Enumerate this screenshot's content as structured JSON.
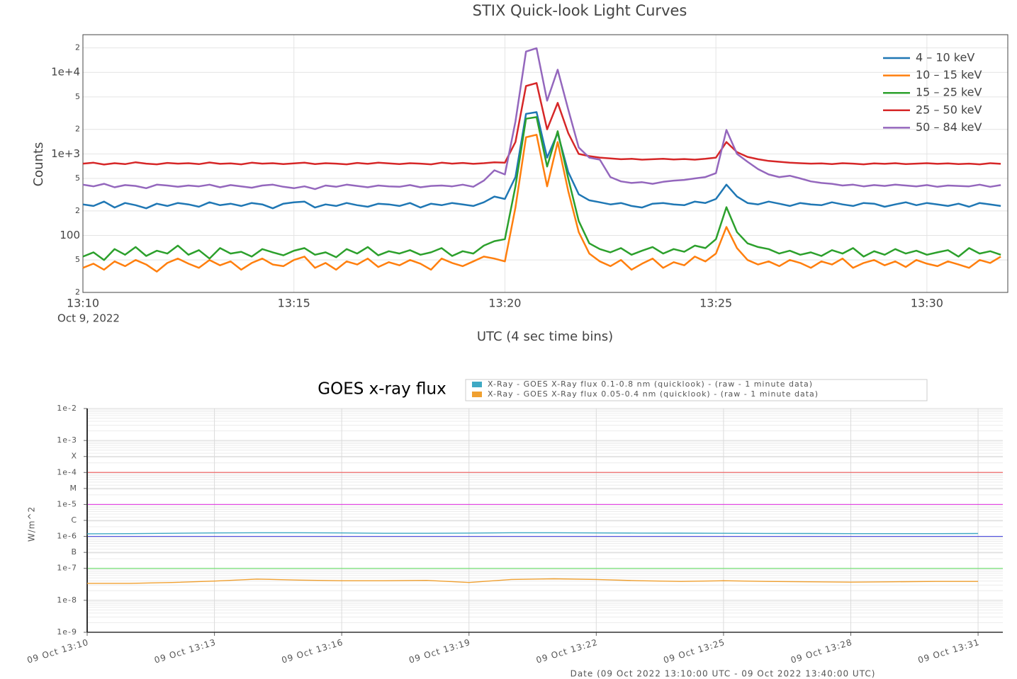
{
  "chart_data": [
    {
      "type": "line",
      "title": "STIX Quick-look Light Curves",
      "ylabel": "Counts",
      "xlabel": "UTC (4 sec time bins)",
      "x_sublabel": "Oct 9, 2022",
      "log_y": true,
      "grid": true,
      "legend": "upper right",
      "xlim": [
        "13:10:00",
        "13:31:55"
      ],
      "xticks": [
        "13:10",
        "13:15",
        "13:20",
        "13:25",
        "13:30"
      ],
      "ylim": [
        20,
        29000
      ],
      "yticks": [
        {
          "value": 20,
          "label": "2"
        },
        {
          "value": 50,
          "label": "5"
        },
        100,
        {
          "value": 200,
          "label": "2"
        },
        {
          "value": 500,
          "label": "5"
        },
        {
          "value": 1000,
          "label": "1e+3"
        },
        {
          "value": 2000,
          "label": "2"
        },
        {
          "value": 5000,
          "label": "5"
        },
        {
          "value": 10000,
          "label": "1e+4"
        },
        {
          "value": 20000,
          "label": "2"
        }
      ],
      "x": [
        "13:10:00",
        "13:10:15",
        "13:10:30",
        "13:10:45",
        "13:11:00",
        "13:11:15",
        "13:11:30",
        "13:11:45",
        "13:12:00",
        "13:12:15",
        "13:12:30",
        "13:12:45",
        "13:13:00",
        "13:13:15",
        "13:13:30",
        "13:13:45",
        "13:14:00",
        "13:14:15",
        "13:14:30",
        "13:14:45",
        "13:15:00",
        "13:15:15",
        "13:15:30",
        "13:15:45",
        "13:16:00",
        "13:16:15",
        "13:16:30",
        "13:16:45",
        "13:17:00",
        "13:17:15",
        "13:17:30",
        "13:17:45",
        "13:18:00",
        "13:18:15",
        "13:18:30",
        "13:18:45",
        "13:19:00",
        "13:19:15",
        "13:19:30",
        "13:19:45",
        "13:20:00",
        "13:20:15",
        "13:20:30",
        "13:20:45",
        "13:21:00",
        "13:21:15",
        "13:21:30",
        "13:21:45",
        "13:22:00",
        "13:22:15",
        "13:22:30",
        "13:22:45",
        "13:23:00",
        "13:23:15",
        "13:23:30",
        "13:23:45",
        "13:24:00",
        "13:24:15",
        "13:24:30",
        "13:24:45",
        "13:25:00",
        "13:25:15",
        "13:25:30",
        "13:25:45",
        "13:26:00",
        "13:26:15",
        "13:26:30",
        "13:26:45",
        "13:27:00",
        "13:27:15",
        "13:27:30",
        "13:27:45",
        "13:28:00",
        "13:28:15",
        "13:28:30",
        "13:28:45",
        "13:29:00",
        "13:29:15",
        "13:29:30",
        "13:29:45",
        "13:30:00",
        "13:30:15",
        "13:30:30",
        "13:30:45",
        "13:31:00",
        "13:31:15",
        "13:31:30",
        "13:31:45"
      ],
      "series": [
        {
          "name": "4 – 10 keV",
          "color": "#1f77b4",
          "values": [
            240,
            230,
            260,
            220,
            250,
            235,
            215,
            245,
            230,
            250,
            240,
            225,
            255,
            235,
            245,
            230,
            250,
            240,
            215,
            245,
            255,
            260,
            220,
            240,
            230,
            250,
            235,
            225,
            245,
            240,
            230,
            250,
            220,
            245,
            235,
            250,
            240,
            230,
            255,
            300,
            280,
            520,
            3100,
            3250,
            900,
            1800,
            600,
            320,
            270,
            255,
            240,
            250,
            230,
            220,
            245,
            250,
            240,
            235,
            260,
            250,
            280,
            420,
            300,
            250,
            240,
            260,
            245,
            230,
            250,
            240,
            235,
            255,
            240,
            230,
            250,
            245,
            225,
            240,
            255,
            235,
            250,
            240,
            230,
            245,
            225,
            250,
            240,
            230
          ]
        },
        {
          "name": "10 – 15 keV",
          "color": "#ff7f0e",
          "values": [
            40,
            45,
            38,
            48,
            42,
            50,
            44,
            36,
            46,
            52,
            45,
            40,
            50,
            43,
            48,
            38,
            46,
            52,
            44,
            42,
            50,
            55,
            40,
            46,
            38,
            48,
            44,
            52,
            41,
            47,
            43,
            50,
            45,
            38,
            52,
            46,
            42,
            48,
            55,
            52,
            48,
            220,
            1600,
            1720,
            400,
            1400,
            350,
            110,
            60,
            48,
            42,
            50,
            38,
            45,
            52,
            40,
            47,
            43,
            55,
            48,
            60,
            127,
            70,
            50,
            44,
            48,
            42,
            50,
            46,
            40,
            48,
            44,
            52,
            40,
            46,
            50,
            43,
            48,
            41,
            50,
            45,
            42,
            48,
            44,
            40,
            50,
            46,
            55
          ]
        },
        {
          "name": "15 – 25 keV",
          "color": "#2ca02c",
          "values": [
            55,
            62,
            50,
            68,
            58,
            72,
            56,
            65,
            60,
            75,
            58,
            66,
            52,
            70,
            60,
            63,
            55,
            68,
            62,
            57,
            65,
            70,
            58,
            62,
            54,
            68,
            60,
            72,
            57,
            64,
            60,
            66,
            58,
            62,
            70,
            56,
            64,
            60,
            75,
            85,
            90,
            400,
            2700,
            2830,
            700,
            1900,
            500,
            150,
            80,
            68,
            62,
            70,
            58,
            65,
            72,
            60,
            68,
            63,
            75,
            70,
            90,
            222,
            110,
            80,
            72,
            68,
            60,
            65,
            58,
            62,
            56,
            66,
            60,
            70,
            55,
            64,
            58,
            68,
            60,
            65,
            58,
            62,
            66,
            55,
            70,
            60,
            64,
            58
          ]
        },
        {
          "name": "25 – 50 keV",
          "color": "#d62728",
          "values": [
            760,
            780,
            740,
            770,
            750,
            790,
            760,
            745,
            775,
            760,
            770,
            750,
            785,
            755,
            765,
            745,
            780,
            760,
            770,
            750,
            765,
            780,
            750,
            770,
            760,
            745,
            775,
            755,
            780,
            765,
            750,
            770,
            760,
            745,
            780,
            760,
            775,
            755,
            770,
            790,
            780,
            1400,
            6800,
            7400,
            2000,
            4230,
            1800,
            1000,
            940,
            900,
            880,
            860,
            870,
            850,
            860,
            870,
            855,
            865,
            850,
            870,
            900,
            1400,
            1050,
            920,
            860,
            820,
            800,
            780,
            770,
            760,
            765,
            750,
            770,
            760,
            745,
            765,
            755,
            770,
            750,
            760,
            770,
            755,
            765,
            750,
            760,
            745,
            770,
            755
          ]
        },
        {
          "name": "50 – 84 keV",
          "color": "#9467bd",
          "values": [
            420,
            400,
            430,
            390,
            415,
            405,
            380,
            420,
            410,
            395,
            410,
            400,
            420,
            390,
            415,
            400,
            385,
            410,
            420,
            395,
            380,
            400,
            370,
            410,
            395,
            420,
            405,
            390,
            410,
            400,
            395,
            415,
            390,
            405,
            410,
            400,
            420,
            395,
            470,
            630,
            560,
            2500,
            18000,
            19800,
            4500,
            10800,
            3500,
            1200,
            900,
            850,
            520,
            460,
            440,
            450,
            430,
            455,
            470,
            480,
            500,
            520,
            580,
            1970,
            1000,
            800,
            650,
            560,
            520,
            540,
            500,
            460,
            440,
            430,
            410,
            420,
            400,
            415,
            405,
            420,
            410,
            400,
            415,
            395,
            410,
            405,
            400,
            420,
            395,
            415
          ]
        }
      ]
    },
    {
      "type": "line",
      "title": "GOES x-ray flux",
      "ylabel": "W/m^2",
      "xlabel": "Date (09 Oct 2022 13:10:00 UTC - 09 Oct 2022 13:40:00 UTC)",
      "log_y": true,
      "grid": true,
      "minor_grid": true,
      "legend": "top",
      "xlim": [
        "13:10",
        "13:31:35"
      ],
      "xticks": [
        {
          "value": "13:10",
          "label": "09 Oct 13:10"
        },
        {
          "value": "13:13",
          "label": "09 Oct 13:13"
        },
        {
          "value": "13:16",
          "label": "09 Oct 13:16"
        },
        {
          "value": "13:19",
          "label": "09 Oct 13:19"
        },
        {
          "value": "13:22",
          "label": "09 Oct 13:22"
        },
        {
          "value": "13:25",
          "label": "09 Oct 13:25"
        },
        {
          "value": "13:28",
          "label": "09 Oct 13:28"
        },
        {
          "value": "13:31",
          "label": "09 Oct 13:31"
        }
      ],
      "ylim": [
        1e-09,
        0.01
      ],
      "yticks": [
        {
          "value": 0.01,
          "label": "1e-2"
        },
        {
          "value": 0.001,
          "label": "1e-3"
        },
        {
          "value": 0.000316,
          "label": "X"
        },
        {
          "value": 0.0001,
          "label": "1e-4"
        },
        {
          "value": 3.16e-05,
          "label": "M"
        },
        {
          "value": 1e-05,
          "label": "1e-5"
        },
        {
          "value": 3.16e-06,
          "label": "C"
        },
        {
          "value": 1e-06,
          "label": "1e-6"
        },
        {
          "value": 3.16e-07,
          "label": "B"
        },
        {
          "value": 1e-07,
          "label": "1e-7"
        },
        {
          "value": 1e-08,
          "label": "1e-8"
        },
        {
          "value": 1e-09,
          "label": "1e-9"
        }
      ],
      "thresholds": [
        {
          "value": 0.0001,
          "color": "#ef6a6a"
        },
        {
          "value": 1e-05,
          "color": "#e040e0"
        },
        {
          "value": 1e-06,
          "color": "#4848d8"
        },
        {
          "value": 1e-07,
          "color": "#78e078"
        }
      ],
      "x": [
        "13:10",
        "13:11",
        "13:12",
        "13:13",
        "13:14",
        "13:15",
        "13:16",
        "13:17",
        "13:18",
        "13:19",
        "13:20",
        "13:21",
        "13:22",
        "13:23",
        "13:24",
        "13:25",
        "13:26",
        "13:27",
        "13:28",
        "13:29",
        "13:30",
        "13:31"
      ],
      "series": [
        {
          "name": "X-Ray - GOES X-Ray flux 0.1-0.8 nm (quicklook) -  (raw - 1 minute data)",
          "color": "#3fa9c4",
          "values": [
            1.2e-06,
            1.22e-06,
            1.25e-06,
            1.28e-06,
            1.3e-06,
            1.3e-06,
            1.28e-06,
            1.25e-06,
            1.25e-06,
            1.27e-06,
            1.3e-06,
            1.3e-06,
            1.28e-06,
            1.27e-06,
            1.26e-06,
            1.25e-06,
            1.24e-06,
            1.23e-06,
            1.22e-06,
            1.22e-06,
            1.22e-06,
            1.23e-06
          ]
        },
        {
          "name": "X-Ray - GOES X-Ray flux 0.05-0.4 nm (quicklook) -  (raw - 1 minute data)",
          "color": "#f0a030",
          "values": [
            3.4e-08,
            3.4e-08,
            3.6e-08,
            4e-08,
            4.6e-08,
            4.3e-08,
            4.1e-08,
            4.1e-08,
            4.2e-08,
            3.6e-08,
            4.5e-08,
            4.7e-08,
            4.5e-08,
            4.1e-08,
            3.9e-08,
            4.1e-08,
            3.9e-08,
            3.8e-08,
            3.7e-08,
            3.8e-08,
            3.9e-08,
            3.9e-08
          ]
        }
      ]
    }
  ]
}
